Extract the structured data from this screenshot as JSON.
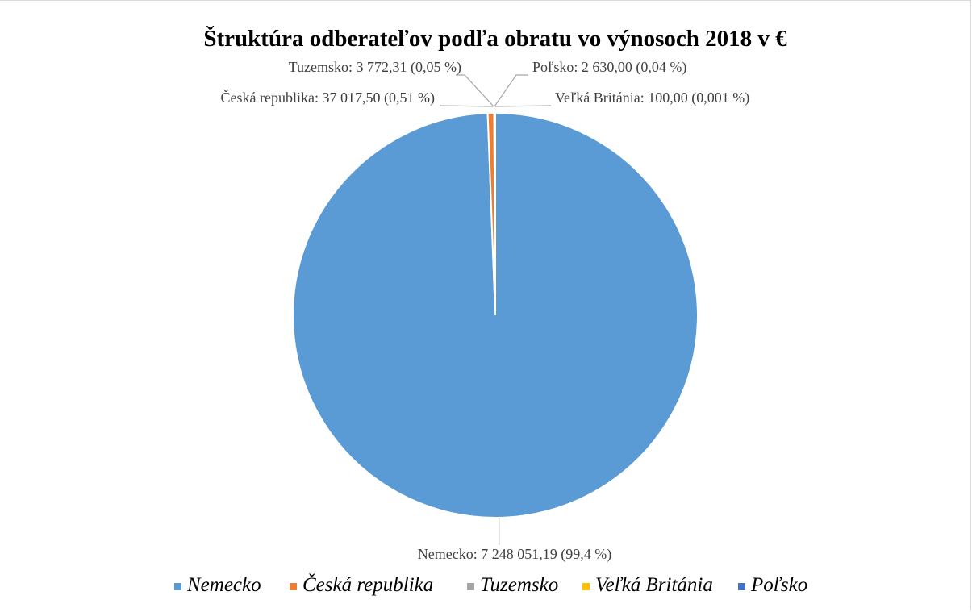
{
  "chart_data": {
    "type": "pie",
    "title": "Štruktúra odberateľov podľa obratu vo výnosoch 2018 v €",
    "slices": [
      {
        "name": "Nemecko",
        "value": 7248051.19,
        "label": "Nemecko: 7 248 051,19 (99,4 %)",
        "color": "#5b9bd5"
      },
      {
        "name": "Česká republika",
        "value": 37017.5,
        "label": "Česká republika: 37 017,50 (0,51 %)",
        "color": "#ed7d31"
      },
      {
        "name": "Tuzemsko",
        "value": 3772.31,
        "label": "Tuzemsko: 3 772,31 (0,05 %)",
        "color": "#a5a5a5"
      },
      {
        "name": "Veľká Británia",
        "value": 100.0,
        "label": "Veľká Británia: 100,00 (0,001 %)",
        "color": "#ffc000"
      },
      {
        "name": "Poľsko",
        "value": 2630.0,
        "label": "Poľsko: 2 630,00 (0,04 %)",
        "color": "#4472c4"
      }
    ],
    "legend_position": "bottom",
    "leader_line_color": "#a6a6a6"
  }
}
